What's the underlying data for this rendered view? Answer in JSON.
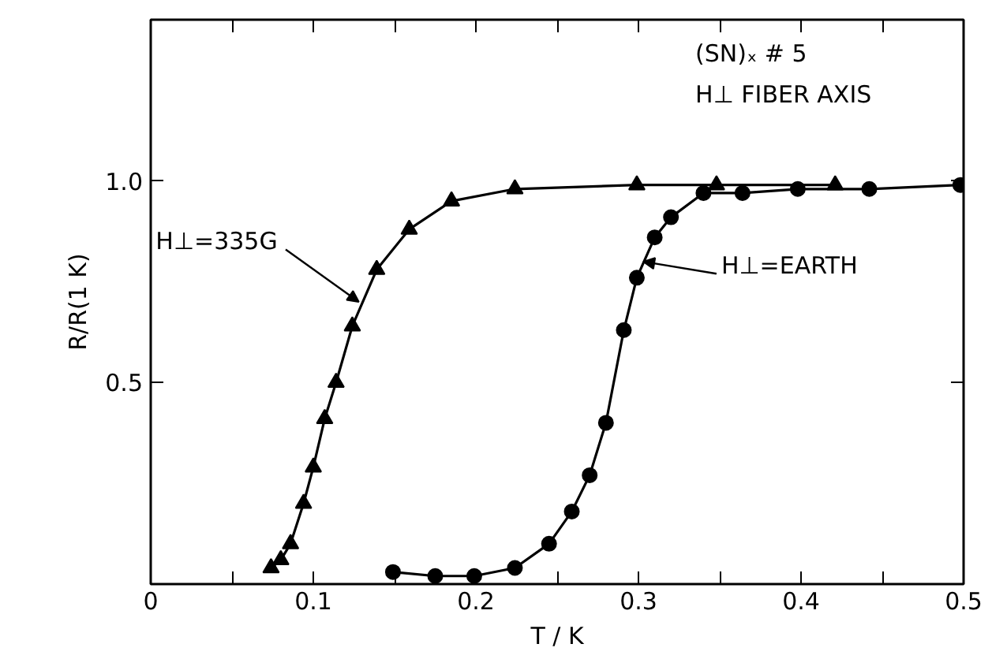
{
  "chart_data": {
    "type": "line",
    "xlabel": "T / K",
    "ylabel": "R/R(1 K)",
    "xlim": [
      0,
      0.5
    ],
    "ylim": [
      0,
      1.4
    ],
    "xticks": [
      0,
      {
        "value": 0.05,
        "label": null
      },
      0.1,
      {
        "value": 0.15,
        "label": null
      },
      0.2,
      {
        "value": 0.25,
        "label": null
      },
      0.3,
      {
        "value": 0.35,
        "label": null
      },
      0.4,
      {
        "value": 0.45,
        "label": null
      },
      0.5
    ],
    "yticks": [
      0.5,
      {
        "value": 1.0,
        "label": "1.0"
      }
    ],
    "line_style": "solid",
    "series": [
      {
        "color": "#000000",
        "marker": "triangle",
        "x": [
          0.074,
          0.08,
          0.086,
          0.094,
          0.1,
          0.107,
          0.114,
          0.124,
          0.139,
          0.159,
          0.185,
          0.224,
          0.299,
          0.348,
          0.421
        ],
        "values": [
          0.04,
          0.06,
          0.1,
          0.2,
          0.29,
          0.41,
          0.5,
          0.64,
          0.78,
          0.88,
          0.95,
          0.98,
          0.99,
          0.99,
          0.99
        ]
      },
      {
        "color": "#000000",
        "marker": "circle",
        "x": [
          0.149,
          0.175,
          0.199,
          0.224,
          0.245,
          0.259,
          0.27,
          0.28,
          0.291,
          0.299,
          0.31,
          0.32,
          0.34,
          0.364,
          0.398,
          0.442,
          0.498
        ],
        "values": [
          0.03,
          0.02,
          0.02,
          0.04,
          0.1,
          0.18,
          0.27,
          0.4,
          0.63,
          0.76,
          0.86,
          0.91,
          0.97,
          0.97,
          0.98,
          0.98,
          0.99
        ]
      }
    ],
    "annotations": [
      "(SN)ₓ # 5",
      "H⊥ FIBER AXIS",
      {
        "text": "H⊥=335G",
        "x": 0.128,
        "y": 0.7
      },
      {
        "text": "H⊥=EARTH",
        "x": 0.303,
        "y": 0.8
      }
    ]
  }
}
